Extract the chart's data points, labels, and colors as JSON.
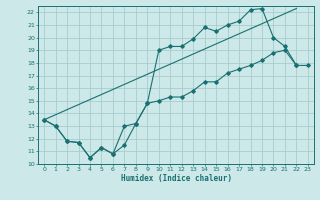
{
  "xlabel": "Humidex (Indice chaleur)",
  "xlim": [
    -0.5,
    23.5
  ],
  "ylim": [
    10,
    22.5
  ],
  "yticks": [
    10,
    11,
    12,
    13,
    14,
    15,
    16,
    17,
    18,
    19,
    20,
    21,
    22
  ],
  "xticks": [
    0,
    1,
    2,
    3,
    4,
    5,
    6,
    7,
    8,
    9,
    10,
    11,
    12,
    13,
    14,
    15,
    16,
    17,
    18,
    19,
    20,
    21,
    22,
    23
  ],
  "bg_color": "#cce8e8",
  "grid_color": "#a8cccc",
  "line_color": "#1a7070",
  "curve1_x": [
    0,
    1,
    2,
    3,
    4,
    5,
    6,
    7,
    8,
    9,
    10,
    11,
    12,
    13,
    14,
    15,
    16,
    17,
    18,
    19,
    20,
    21,
    22
  ],
  "curve1_y": [
    13.5,
    13.0,
    11.8,
    11.7,
    10.5,
    11.3,
    10.8,
    13.0,
    13.2,
    14.8,
    19.0,
    19.3,
    19.3,
    19.9,
    20.8,
    20.5,
    21.0,
    21.3,
    22.2,
    22.3,
    20.0,
    19.3,
    17.8
  ],
  "curve2_x": [
    0,
    1,
    2,
    3,
    4,
    5,
    6,
    7,
    8,
    9,
    10,
    11,
    12,
    13,
    14,
    15,
    16,
    17,
    18,
    19,
    20,
    21,
    22,
    23
  ],
  "curve2_y": [
    13.5,
    13.0,
    11.8,
    11.7,
    10.5,
    11.3,
    10.8,
    11.5,
    13.2,
    14.8,
    15.0,
    15.3,
    15.3,
    15.8,
    16.5,
    16.5,
    17.2,
    17.5,
    17.8,
    18.2,
    18.8,
    19.0,
    17.8,
    17.8
  ],
  "curve3_x": [
    0,
    22
  ],
  "curve3_y": [
    13.5,
    22.3
  ]
}
